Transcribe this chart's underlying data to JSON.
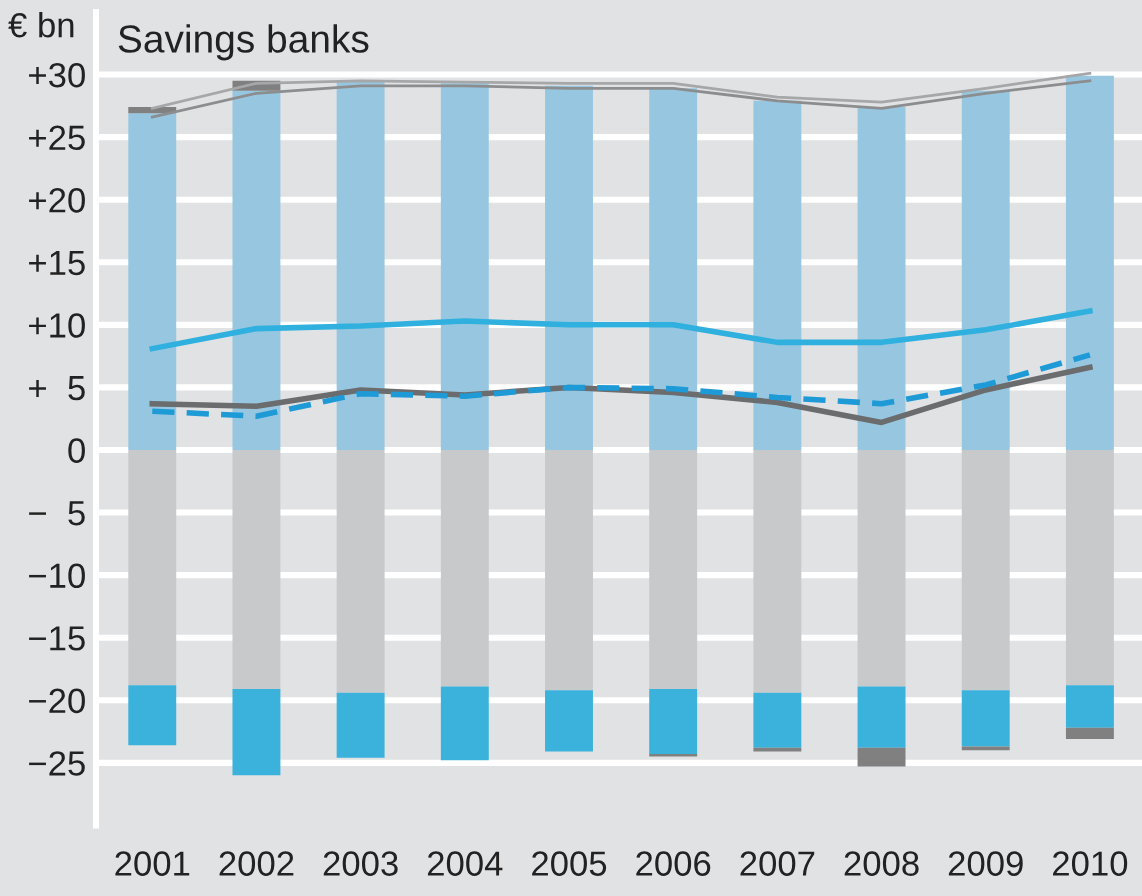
{
  "chart_data": {
    "type": "bar",
    "stacked": true,
    "title": "Savings banks",
    "ylabel": "€ bn",
    "categories": [
      "2001",
      "2002",
      "2003",
      "2004",
      "2005",
      "2006",
      "2007",
      "2008",
      "2009",
      "2010"
    ],
    "series": [
      {
        "color": "#97c7e0",
        "values": [
          26.9,
          28.7,
          29.4,
          29.3,
          29.1,
          28.9,
          27.9,
          27.4,
          28.7,
          29.9
        ]
      },
      {
        "color": "#c8c9cb",
        "values": [
          -18.8,
          -19.1,
          -19.4,
          -18.9,
          -19.2,
          -19.1,
          -19.4,
          -18.9,
          -19.2,
          -18.8
        ]
      },
      {
        "color": "#3bb2dc",
        "values": [
          -4.8,
          -6.9,
          -5.2,
          -5.9,
          -4.9,
          -5.2,
          -4.4,
          -4.9,
          -4.5,
          -3.4
        ]
      },
      {
        "color": "#808080",
        "values": [
          0.5,
          0.8,
          null,
          null,
          null,
          -0.2,
          -0.3,
          -1.5,
          -0.3,
          -0.9
        ]
      },
      {
        "type": "line",
        "color": "#a6a7a9",
        "line_style": "solid",
        "values": [
          27.3,
          29.3,
          29.5,
          29.4,
          29.3,
          29.3,
          28.2,
          27.8,
          28.9,
          30.1
        ]
      },
      {
        "type": "line",
        "color": "#8c8d8f",
        "line_style": "solid",
        "values": [
          26.6,
          28.5,
          29.1,
          29.1,
          28.9,
          28.9,
          27.9,
          27.3,
          28.5,
          29.5
        ]
      },
      {
        "type": "line",
        "color": "#2fb0de",
        "line_style": "solid",
        "values": [
          8.1,
          9.7,
          9.9,
          10.3,
          10.0,
          10.0,
          8.6,
          8.6,
          9.6,
          11.1
        ]
      },
      {
        "type": "line",
        "color": "#6b6c6e",
        "line_style": "solid",
        "values": [
          3.7,
          3.5,
          4.8,
          4.4,
          5.0,
          4.6,
          3.8,
          2.2,
          4.8,
          6.6
        ]
      },
      {
        "type": "line",
        "color": "#1e9ad6",
        "line_style": "dashed",
        "values": [
          3.1,
          2.7,
          4.5,
          4.3,
          5.0,
          4.9,
          4.2,
          3.7,
          5.2,
          7.6
        ]
      }
    ],
    "ylim": [
      -30,
      35
    ],
    "yticks": [
      {
        "value": 30,
        "label": "+30"
      },
      {
        "value": 25,
        "label": "+25"
      },
      {
        "value": 20,
        "label": "+20"
      },
      {
        "value": 15,
        "label": "+15"
      },
      {
        "value": 10,
        "label": "+10"
      },
      {
        "value": 5,
        "label": "+  5"
      },
      0,
      {
        "value": -5,
        "label": "−  5"
      },
      {
        "value": -10,
        "label": "−10"
      },
      {
        "value": -15,
        "label": "−15"
      },
      {
        "value": -20,
        "label": "−20"
      },
      {
        "value": -25,
        "label": "−25"
      }
    ],
    "grid": "y",
    "legend": false
  }
}
